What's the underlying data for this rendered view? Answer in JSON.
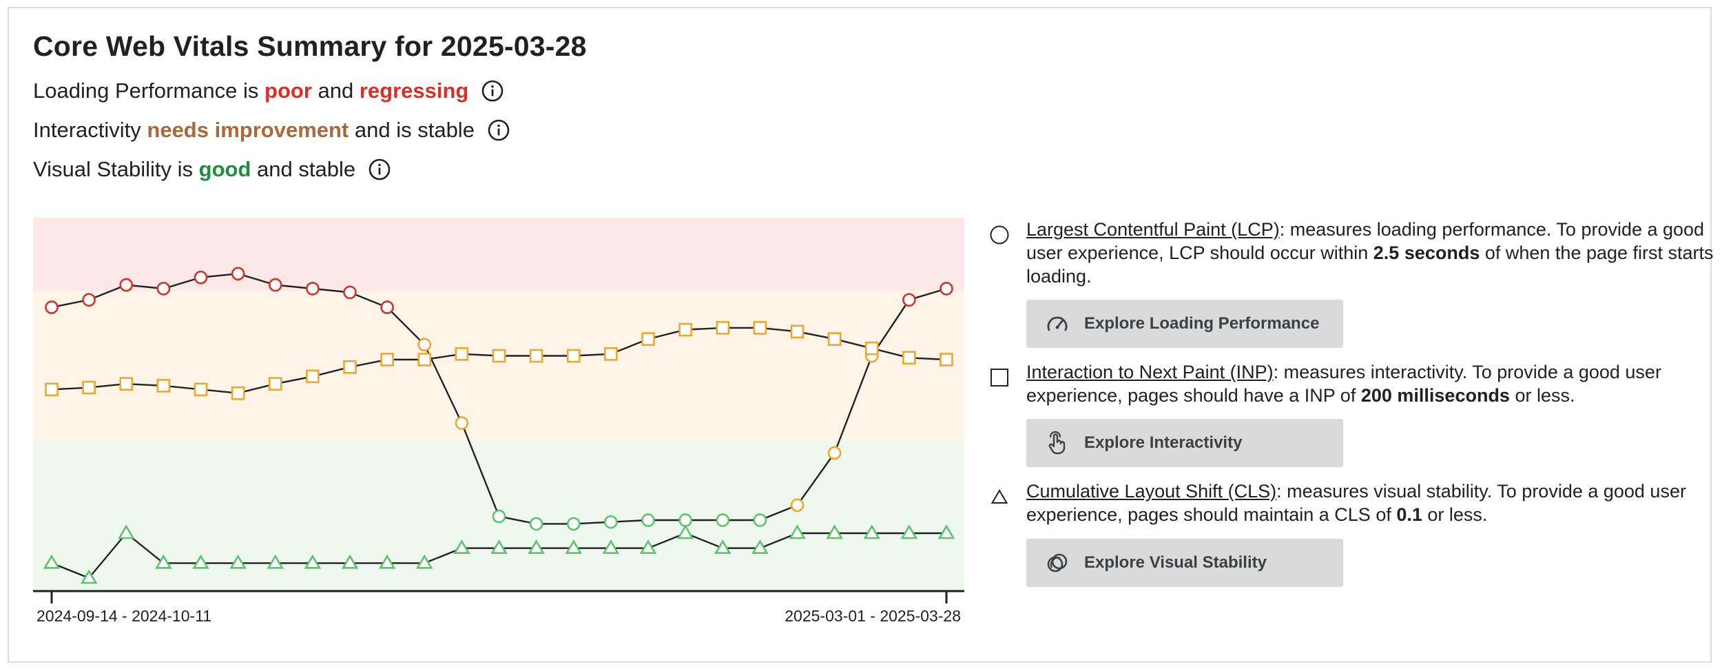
{
  "title": "Core Web Vitals Summary for 2025-03-28",
  "statuses": [
    {
      "prefix": "Loading Performance is ",
      "q1": "poor",
      "mid": " and ",
      "q2": "regressing",
      "suffix": ""
    },
    {
      "prefix": "Interactivity ",
      "q1": "needs improvement",
      "mid": " and is stable",
      "q2": "",
      "suffix": ""
    },
    {
      "prefix": "Visual Stability is ",
      "q1": "good",
      "mid": " and stable",
      "q2": "",
      "suffix": ""
    }
  ],
  "colors": {
    "poor": "#d93025",
    "needs_improvement": "#a8683a",
    "good": "#1e8e3e",
    "band_poor": "#fce8e6",
    "band_ni": "#fef4e8",
    "band_good": "#eef8ee",
    "marker_poor": "#d93025",
    "marker_ni": "#f2a52c",
    "marker_good": "#5cc36a"
  },
  "chart_data": {
    "type": "line",
    "x_labels": {
      "start": "2024-09-14 - 2024-10-11",
      "end": "2025-03-01 - 2025-03-28"
    },
    "bands": [
      "poor",
      "needs-improvement",
      "good"
    ],
    "series": [
      {
        "name": "Largest Contentful Paint (LCP)",
        "marker": "circle",
        "values": [
          76,
          78,
          82,
          81,
          84,
          85,
          82,
          81,
          80,
          76,
          66,
          45,
          20,
          18,
          18,
          18.5,
          19,
          19,
          19,
          19,
          23,
          37,
          63,
          78,
          81
        ],
        "status": [
          "poor",
          "poor",
          "poor",
          "poor",
          "poor",
          "poor",
          "poor",
          "poor",
          "poor",
          "poor",
          "ni",
          "ni",
          "good",
          "good",
          "good",
          "good",
          "good",
          "good",
          "good",
          "good",
          "ni",
          "ni",
          "ni",
          "poor",
          "poor"
        ]
      },
      {
        "name": "Interaction to Next Paint (INP)",
        "marker": "square",
        "values": [
          54,
          54.5,
          55.5,
          55,
          54,
          53,
          55.5,
          57.5,
          60,
          62,
          62,
          63.5,
          63,
          63,
          63,
          63.5,
          67.5,
          70,
          70.5,
          70.5,
          69.5,
          67.5,
          65,
          62.5,
          62
        ],
        "status": [
          "ni",
          "ni",
          "ni",
          "ni",
          "ni",
          "ni",
          "ni",
          "ni",
          "ni",
          "ni",
          "ni",
          "ni",
          "ni",
          "ni",
          "ni",
          "ni",
          "ni",
          "ni",
          "ni",
          "ni",
          "ni",
          "ni",
          "ni",
          "ni",
          "ni"
        ]
      },
      {
        "name": "Cumulative Layout Shift (CLS)",
        "marker": "triangle",
        "values": [
          7.5,
          3.5,
          15.5,
          7.5,
          7.5,
          7.5,
          7.5,
          7.5,
          7.5,
          7.5,
          7.5,
          11.5,
          11.5,
          11.5,
          11.5,
          11.5,
          11.5,
          15.5,
          11.5,
          11.5,
          15.5,
          15.5,
          15.5,
          15.5,
          15.5
        ],
        "status": [
          "good",
          "good",
          "good",
          "good",
          "good",
          "good",
          "good",
          "good",
          "good",
          "good",
          "good",
          "good",
          "good",
          "good",
          "good",
          "good",
          "good",
          "good",
          "good",
          "good",
          "good",
          "good",
          "good",
          "good",
          "good"
        ]
      }
    ]
  },
  "metrics": [
    {
      "marker": "circle",
      "name": "Largest Contentful Paint (LCP)",
      "desc1": ": measures loading performance. To provide a good user experience, LCP should occur within ",
      "bold": "2.5 seconds",
      "desc2": " of when the page first starts loading.",
      "button": "Explore Loading Performance",
      "button_icon": "speedometer-icon"
    },
    {
      "marker": "square",
      "name": "Interaction to Next Paint (INP)",
      "desc1": ": measures interactivity. To provide a good user experience, pages should have a INP of ",
      "bold": "200 milliseconds",
      "desc2": " or less.",
      "button": "Explore Interactivity",
      "button_icon": "pointer-hand-icon"
    },
    {
      "marker": "triangle",
      "name": "Cumulative Layout Shift (CLS)",
      "desc1": ": measures visual stability. To provide a good user experience, pages should maintain a CLS of ",
      "bold": "0.1",
      "desc2": " or less.",
      "button": "Explore Visual Stability",
      "button_icon": "overlapping-rings-icon"
    }
  ]
}
